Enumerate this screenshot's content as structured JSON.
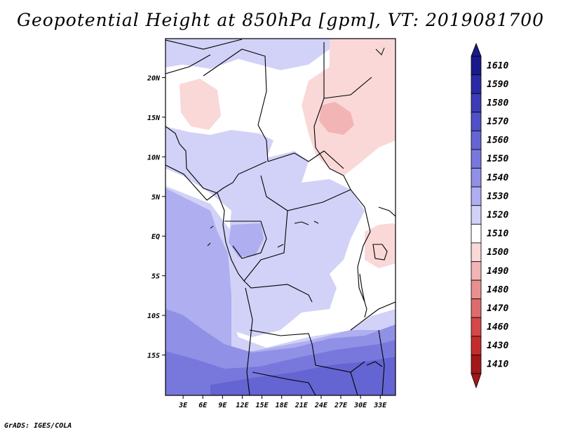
{
  "title": "Geopotential Height at 850hPa [gpm], VT: 2019081700",
  "footer": "GrADS: IGES/COLA",
  "map": {
    "y_ticks": [
      "20N",
      "15N",
      "10N",
      "5N",
      "EQ",
      "5S",
      "10S",
      "15S"
    ],
    "x_ticks": [
      "3E",
      "6E",
      "9E",
      "12E",
      "15E",
      "18E",
      "21E",
      "24E",
      "27E",
      "30E",
      "33E"
    ],
    "extent": {
      "lon": [
        0,
        35
      ],
      "lat": [
        -20,
        25
      ]
    }
  },
  "colorbar": {
    "labels": [
      "1610",
      "1590",
      "1580",
      "1570",
      "1560",
      "1550",
      "1540",
      "1530",
      "1520",
      "1510",
      "1500",
      "1490",
      "1480",
      "1470",
      "1460",
      "1430",
      "1410"
    ],
    "colors": [
      "#1a1a8c",
      "#2a2aa6",
      "#3c3cb8",
      "#5050c8",
      "#6464d2",
      "#7878dc",
      "#9090e6",
      "#aeaef0",
      "#d2d2f8",
      "#ffffff",
      "#fad8d8",
      "#f2b4b4",
      "#e89090",
      "#de6c6c",
      "#d44848",
      "#c42c2c",
      "#a01818"
    ]
  }
}
